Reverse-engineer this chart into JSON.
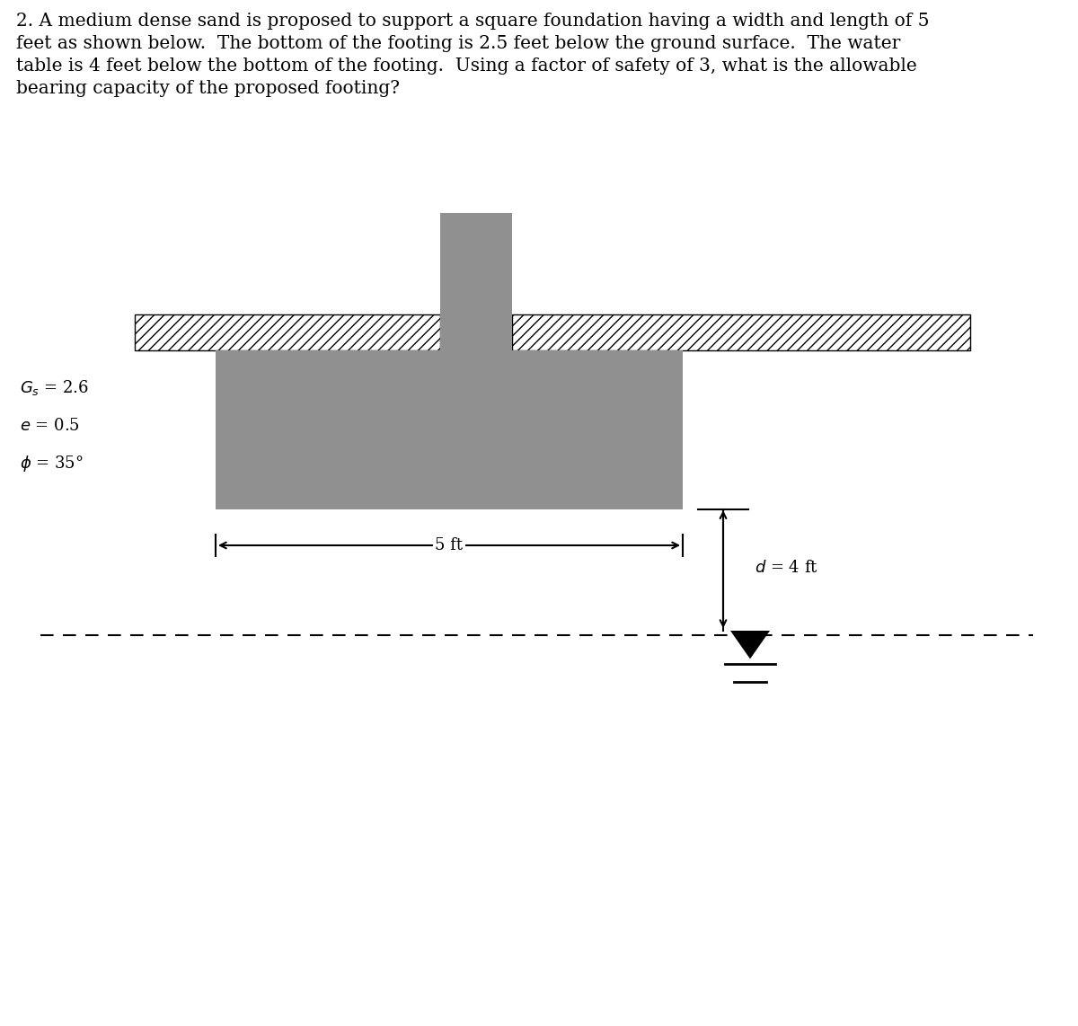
{
  "title_text": "2. A medium dense sand is proposed to support a square foundation having a width and length of 5\nfeet as shown below.  The bottom of the footing is 2.5 feet below the ground surface.  The water\ntable is 4 feet below the bottom of the footing.  Using a factor of safety of 3, what is the allowable\nbearing capacity of the proposed footing?",
  "param_text": [
    "$G_s$ = 2.6",
    "$e$ = 0.5",
    "$\\phi$ = 35°"
  ],
  "dim_text_5ft": "5 ft",
  "dim_text_d": "$d$ = 4 ft",
  "gray_color": "#909090",
  "bg_color": "#ffffff",
  "font_size_title": 14.5,
  "font_size_params": 13,
  "font_size_dims": 13
}
